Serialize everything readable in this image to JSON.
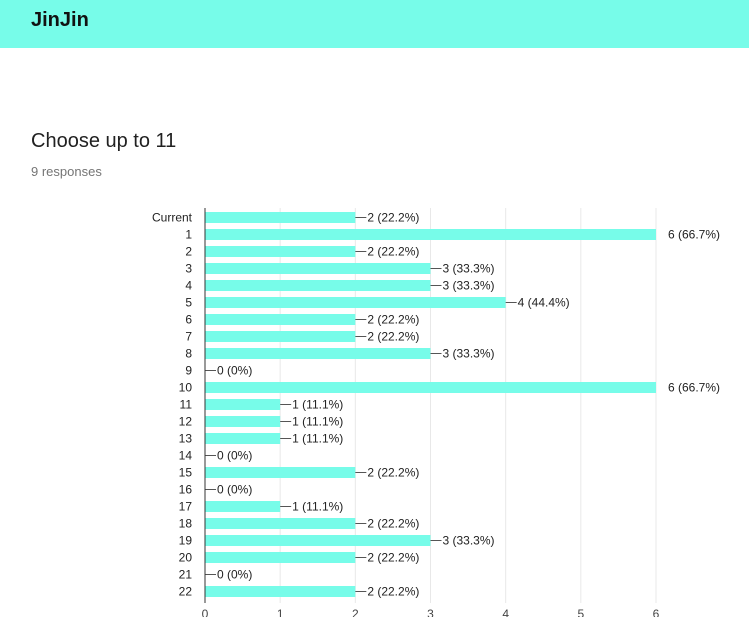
{
  "app": {
    "title": "JinJin"
  },
  "question": {
    "title": "Choose up to 11",
    "responses": "9 responses"
  },
  "colors": {
    "header": "#77fce9",
    "bar": "#77fce9",
    "gridline": "#e8e8e8",
    "axis": "#333333"
  },
  "chart_data": {
    "type": "bar",
    "orientation": "horizontal",
    "grid": true,
    "categories": [
      "Current",
      "1",
      "2",
      "3",
      "4",
      "5",
      "6",
      "7",
      "8",
      "9",
      "10",
      "11",
      "12",
      "13",
      "14",
      "15",
      "16",
      "17",
      "18",
      "19",
      "20",
      "21",
      "22"
    ],
    "values": [
      2,
      6,
      2,
      3,
      3,
      4,
      2,
      2,
      3,
      0,
      6,
      1,
      1,
      1,
      0,
      2,
      0,
      1,
      2,
      3,
      2,
      0,
      2
    ],
    "labels": [
      "2 (22.2%)",
      "6 (66.7%)",
      "2 (22.2%)",
      "3 (33.3%)",
      "3 (33.3%)",
      "4 (44.4%)",
      "2 (22.2%)",
      "2 (22.2%)",
      "3 (33.3%)",
      "0 (0%)",
      "6 (66.7%)",
      "1 (11.1%)",
      "1 (11.1%)",
      "1 (11.1%)",
      "0 (0%)",
      "2 (22.2%)",
      "0 (0%)",
      "1 (11.1%)",
      "2 (22.2%)",
      "3 (33.3%)",
      "2 (22.2%)",
      "0 (0%)",
      "2 (22.2%)"
    ],
    "xlim": [
      0,
      6
    ],
    "xticks": [
      "0",
      "1",
      "2",
      "3",
      "4",
      "5",
      "6"
    ]
  }
}
